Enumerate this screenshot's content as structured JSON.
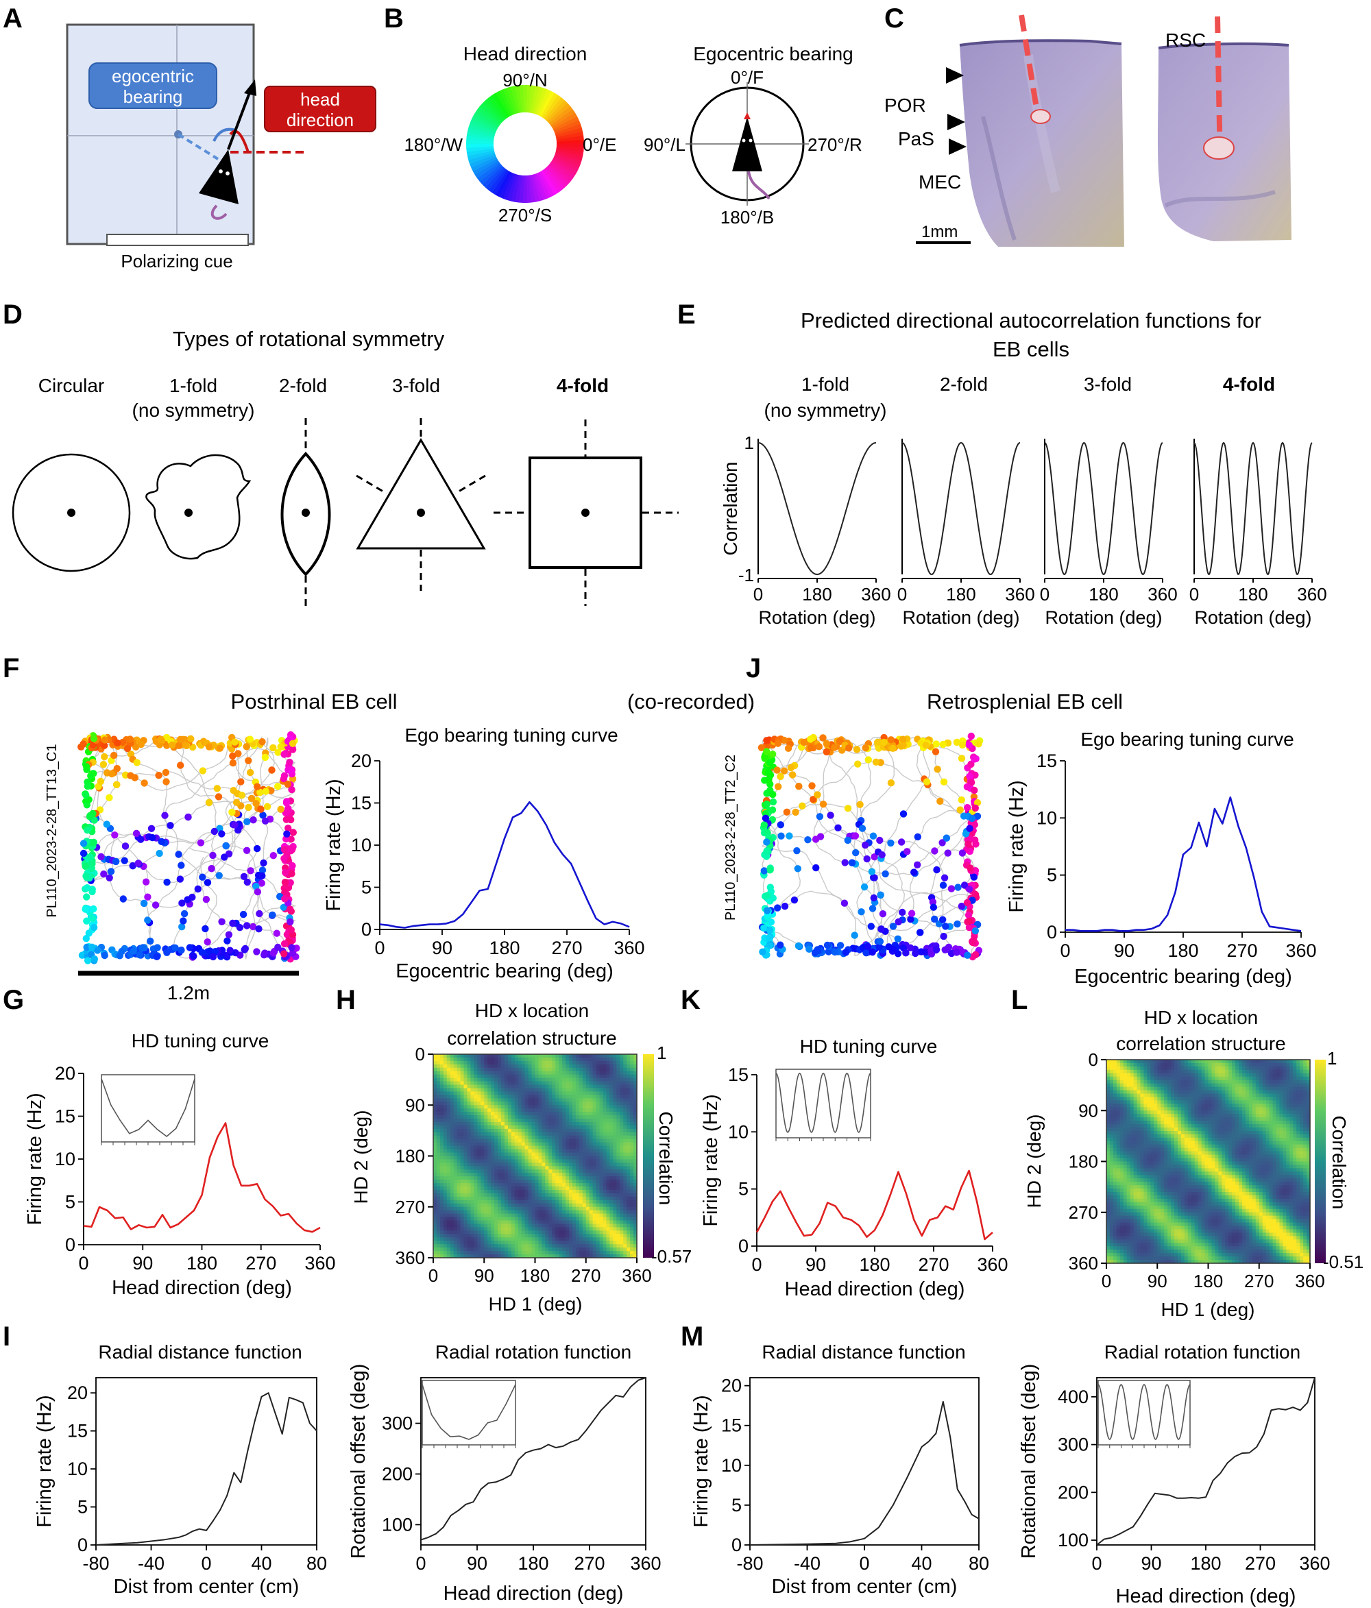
{
  "panel_letters": {
    "A": "A",
    "B": "B",
    "C": "C",
    "D": "D",
    "E": "E",
    "F": "F",
    "G": "G",
    "H": "H",
    "I": "I",
    "J": "J",
    "K": "K",
    "L": "L",
    "M": "M"
  },
  "panel_a": {
    "ego_label_1": "egocentric",
    "ego_label_2": "bearing",
    "hd_label_1": "head",
    "hd_label_2": "direction",
    "cue_label": "Polarizing cue",
    "colors": {
      "ego_box": "#4a7fd0",
      "hd_box": "#c81414"
    }
  },
  "panel_b": {
    "hd_title": "Head direction",
    "hd_north": "90°/N",
    "hd_west": "180°/W",
    "hd_east": "0°/E",
    "hd_south": "270°/S",
    "eb_title": "Egocentric bearing",
    "eb_front": "0°/F",
    "eb_left": "90°/L",
    "eb_right": "270°/R",
    "eb_back": "180°/B"
  },
  "panel_c": {
    "rsc": "RSC",
    "por": "POR",
    "pas": "PaS",
    "mec": "MEC",
    "scale": "1mm",
    "colors": {
      "tissue": "#b9aed0",
      "track": "#ee5050"
    }
  },
  "panel_d": {
    "title": "Types of rotational symmetry",
    "labels": [
      "Circular",
      "1-fold",
      "2-fold",
      "3-fold",
      "4-fold"
    ],
    "sublabel": "(no symmetry)"
  },
  "panel_e": {
    "title_1": "Predicted directional autocorrelation functions for",
    "title_2": "EB cells",
    "labels": [
      "1-fold",
      "2-fold",
      "3-fold",
      "4-fold"
    ],
    "sublabel": "(no symmetry)",
    "ylabel": "Correlation",
    "ytick_top": "1",
    "ytick_bottom": "-1",
    "xlabel": "Rotation (deg)",
    "xticks": [
      "0",
      "180",
      "360"
    ]
  },
  "panel_f": {
    "title": "Postrhinal EB cell",
    "cell_id": "PL110_2023-2-28_TT13_C1",
    "scale_label": "1.2m",
    "plot_title": "Ego bearing tuning curve"
  },
  "panel_j": {
    "title": "Retrosplenial EB cell",
    "cell_id": "PL110_2023-2-28_TT2_C2",
    "plot_title": "Ego bearing tuning curve"
  },
  "co_recorded": "(co-recorded)",
  "axes": {
    "firing_rate": "Firing rate (Hz)",
    "ego_bearing": "Egocentric bearing (deg)",
    "head_direction": "Head direction (deg)",
    "hd2": "HD 2 (deg)",
    "hd1": "HD 1 (deg)",
    "correlation": "Correlation",
    "dist_center": "Dist from center (cm)",
    "rot_offset": "Rotational offset (deg)"
  },
  "panel_titles": {
    "hd_tuning": "HD tuning curve",
    "hdxloc_1": "HD x location",
    "hdxloc_2": "correlation structure",
    "radial_distance": "Radial distance function",
    "radial_rotation": "Radial rotation function"
  },
  "colorbar_h": {
    "max": "1",
    "min": "-0.57"
  },
  "colorbar_l": {
    "max": "1",
    "min": "-0.51"
  },
  "colors": {
    "ego_curve": "#1515d0",
    "hd_curve": "#e02020",
    "black_curve": "#222222",
    "viridis": [
      "#440154",
      "#3b528b",
      "#21918c",
      "#5ec962",
      "#fde725"
    ],
    "path_gray": "#c4c4c4"
  },
  "chart_data": [
    {
      "id": "E",
      "type": "line",
      "x": [
        0,
        360
      ],
      "functions": [
        "cos(1·θ)",
        "cos(2·θ)",
        "cos(3·θ)",
        "cos(4·θ)"
      ],
      "ylim": [
        -1,
        1
      ]
    },
    {
      "id": "F_tuning",
      "type": "line",
      "xlabel": "Egocentric bearing (deg)",
      "ylabel": "Firing rate (Hz)",
      "x": [
        0,
        12,
        24,
        36,
        48,
        60,
        72,
        84,
        96,
        108,
        120,
        132,
        144,
        156,
        168,
        180,
        192,
        204,
        216,
        228,
        240,
        252,
        264,
        276,
        288,
        300,
        312,
        324,
        336,
        348,
        360
      ],
      "values": [
        0.6,
        0.5,
        0.3,
        0.2,
        0.4,
        0.5,
        0.6,
        0.6,
        0.7,
        1.0,
        1.8,
        3.2,
        4.6,
        4.8,
        7.8,
        10.8,
        13.3,
        13.8,
        15.1,
        14.0,
        12.4,
        10.3,
        8.9,
        7.8,
        5.6,
        3.4,
        1.3,
        0.6,
        0.9,
        0.7,
        0.3
      ],
      "ylim": [
        0,
        20
      ],
      "xticks": [
        0,
        90,
        180,
        270,
        360
      ],
      "yticks": [
        0,
        5,
        10,
        15,
        20
      ]
    },
    {
      "id": "J_tuning",
      "type": "line",
      "xlabel": "Egocentric bearing (deg)",
      "ylabel": "Firing rate (Hz)",
      "x": [
        0,
        12,
        24,
        36,
        48,
        60,
        72,
        84,
        96,
        108,
        120,
        132,
        144,
        156,
        168,
        180,
        192,
        204,
        216,
        228,
        240,
        252,
        264,
        276,
        288,
        300,
        312,
        324,
        336,
        348,
        360
      ],
      "values": [
        0.2,
        0.2,
        0.1,
        0.1,
        0.1,
        0.2,
        0.2,
        0.1,
        0.1,
        0.2,
        0.2,
        0.3,
        0.6,
        1.5,
        3.5,
        6.8,
        7.4,
        9.6,
        7.5,
        10.8,
        9.5,
        11.8,
        9.3,
        7.4,
        4.8,
        1.8,
        0.5,
        0.4,
        0.3,
        0.2,
        0.1
      ],
      "ylim": [
        0,
        15
      ],
      "xticks": [
        0,
        90,
        180,
        270,
        360
      ],
      "yticks": [
        0,
        5,
        10,
        15
      ]
    },
    {
      "id": "G",
      "type": "line",
      "xlabel": "Head direction (deg)",
      "ylabel": "Firing rate (Hz)",
      "x": [
        0,
        12,
        24,
        36,
        48,
        60,
        72,
        84,
        96,
        108,
        120,
        132,
        144,
        156,
        168,
        180,
        192,
        204,
        216,
        228,
        240,
        252,
        264,
        276,
        288,
        300,
        312,
        324,
        336,
        348,
        360
      ],
      "values": [
        2.2,
        2.1,
        4.4,
        4.0,
        3.1,
        3.2,
        1.8,
        2.3,
        2.0,
        2.1,
        3.5,
        2.0,
        2.4,
        3.2,
        4.0,
        5.8,
        10.2,
        12.6,
        14.2,
        9.3,
        6.9,
        6.9,
        7.1,
        5.3,
        4.5,
        3.4,
        3.6,
        2.5,
        1.7,
        1.5,
        2.0
      ],
      "ylim": [
        0,
        20
      ],
      "xticks": [
        0,
        90,
        180,
        270,
        360
      ],
      "yticks": [
        0,
        5,
        10,
        15,
        20
      ],
      "inset": {
        "type": "line",
        "values": [
          1.0,
          0.55,
          0.28,
          0.05,
          0.12,
          0.28,
          0.12,
          0.0,
          0.14,
          0.48,
          1.0
        ]
      }
    },
    {
      "id": "K",
      "type": "line",
      "xlabel": "Head direction (deg)",
      "ylabel": "Firing rate (Hz)",
      "x": [
        0,
        12,
        24,
        36,
        48,
        60,
        72,
        84,
        96,
        108,
        120,
        132,
        144,
        156,
        168,
        180,
        192,
        204,
        216,
        228,
        240,
        252,
        264,
        276,
        288,
        300,
        312,
        324,
        336,
        348,
        360
      ],
      "values": [
        1.2,
        2.5,
        3.9,
        4.8,
        3.4,
        2.1,
        0.9,
        1.0,
        2.0,
        3.8,
        3.5,
        2.5,
        2.3,
        1.8,
        0.8,
        1.4,
        2.7,
        4.5,
        6.5,
        4.6,
        2.3,
        0.9,
        2.3,
        2.5,
        3.5,
        3.2,
        5.1,
        6.6,
        3.9,
        0.6,
        1.2
      ],
      "ylim": [
        0,
        15
      ],
      "xticks": [
        0,
        90,
        180,
        270,
        360
      ],
      "yticks": [
        0,
        5,
        10,
        15
      ],
      "inset": {
        "type": "line",
        "function": "4-fold"
      }
    },
    {
      "id": "H",
      "type": "heatmap",
      "xlabel": "HD 1 (deg)",
      "ylabel": "HD 2 (deg)",
      "xticks": [
        0,
        90,
        180,
        270,
        360
      ],
      "colorbar": [
        -0.57,
        1
      ],
      "structure": "2-fold"
    },
    {
      "id": "L",
      "type": "heatmap",
      "xlabel": "HD 1 (deg)",
      "ylabel": "HD 2 (deg)",
      "xticks": [
        0,
        90,
        180,
        270,
        360
      ],
      "colorbar": [
        -0.51,
        1
      ],
      "structure": "2-fold"
    },
    {
      "id": "I_dist",
      "type": "line",
      "xlabel": "Dist from center (cm)",
      "ylabel": "Firing rate (Hz)",
      "x": [
        -80,
        -70,
        -60,
        -50,
        -40,
        -30,
        -20,
        -15,
        -10,
        -5,
        0,
        5,
        10,
        15,
        20,
        25,
        30,
        35,
        40,
        45,
        50,
        55,
        60,
        65,
        70,
        75,
        80
      ],
      "values": [
        0,
        0.1,
        0.2,
        0.3,
        0.5,
        0.7,
        1.0,
        1.3,
        1.8,
        2.1,
        1.9,
        3.2,
        4.6,
        6.5,
        9.5,
        8.2,
        12.4,
        16.2,
        19.5,
        20.0,
        17.3,
        14.6,
        19.4,
        19.1,
        18.7,
        16.0,
        15.0
      ],
      "ylim": [
        0,
        22
      ],
      "xticks": [
        -80,
        -40,
        0,
        40,
        80
      ],
      "yticks": [
        0,
        5,
        10,
        15,
        20
      ]
    },
    {
      "id": "I_rot",
      "type": "line",
      "xlabel": "Head direction (deg)",
      "ylabel": "Rotational offset (deg)",
      "x": [
        0,
        12,
        24,
        36,
        48,
        60,
        72,
        84,
        96,
        108,
        120,
        132,
        144,
        156,
        168,
        180,
        192,
        204,
        216,
        228,
        240,
        252,
        264,
        276,
        288,
        300,
        312,
        324,
        336,
        348,
        360
      ],
      "values": [
        70,
        75,
        82,
        95,
        118,
        128,
        140,
        145,
        170,
        182,
        184,
        190,
        198,
        228,
        242,
        247,
        250,
        258,
        252,
        255,
        263,
        268,
        285,
        305,
        325,
        340,
        355,
        352,
        372,
        385,
        390
      ],
      "ylim": [
        60,
        390
      ],
      "xticks": [
        0,
        90,
        180,
        270,
        360
      ],
      "yticks": [
        100,
        200,
        300
      ],
      "inset": {
        "type": "line",
        "values": [
          1.0,
          0.45,
          0.2,
          0.05,
          0.06,
          0.0,
          0.08,
          0.3,
          0.35,
          0.65,
          1.0
        ]
      }
    },
    {
      "id": "M_dist",
      "type": "line",
      "xlabel": "Dist from center (cm)",
      "ylabel": "Firing rate (Hz)",
      "x": [
        -80,
        -60,
        -40,
        -20,
        -10,
        0,
        10,
        20,
        30,
        40,
        45,
        50,
        55,
        60,
        65,
        70,
        75,
        80
      ],
      "values": [
        0,
        0.05,
        0.1,
        0.2,
        0.4,
        0.8,
        2.2,
        5.0,
        8.5,
        12.3,
        13.0,
        14.0,
        18.0,
        13.5,
        7.0,
        5.5,
        3.8,
        3.3
      ],
      "ylim": [
        0,
        21
      ],
      "xticks": [
        -80,
        -40,
        0,
        40,
        80
      ],
      "yticks": [
        0,
        5,
        10,
        15,
        20
      ]
    },
    {
      "id": "M_rot",
      "type": "line",
      "xlabel": "Head direction (deg)",
      "ylabel": "Rotational offset (deg)",
      "x": [
        0,
        12,
        24,
        36,
        48,
        60,
        72,
        84,
        96,
        108,
        120,
        132,
        144,
        156,
        168,
        180,
        192,
        204,
        216,
        228,
        240,
        252,
        264,
        276,
        288,
        300,
        312,
        324,
        336,
        348,
        360
      ],
      "values": [
        90,
        102,
        105,
        112,
        120,
        128,
        150,
        175,
        198,
        196,
        194,
        188,
        188,
        189,
        188,
        190,
        225,
        240,
        262,
        275,
        282,
        283,
        295,
        322,
        372,
        375,
        373,
        378,
        372,
        388,
        440
      ],
      "ylim": [
        90,
        440
      ],
      "xticks": [
        0,
        90,
        180,
        270,
        360
      ],
      "yticks": [
        100,
        200,
        300,
        400
      ],
      "inset": {
        "type": "line",
        "function": "4-fold"
      }
    }
  ]
}
